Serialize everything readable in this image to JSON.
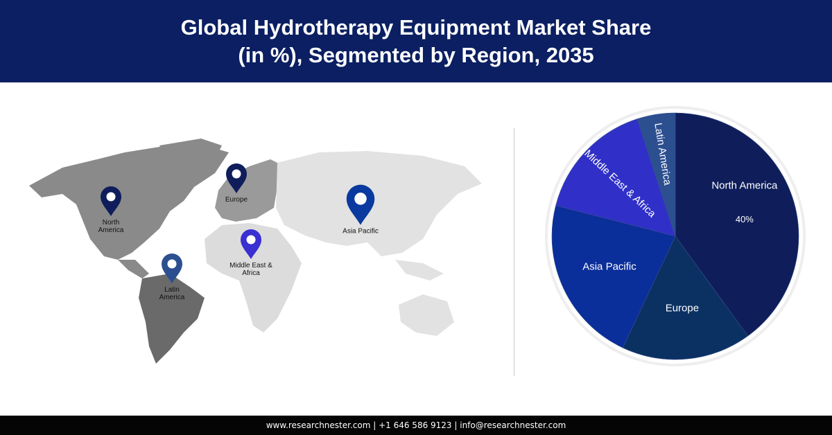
{
  "header": {
    "title_line1": "Global Hydrotherapy Equipment Market Share",
    "title_line2": "(in %), Segmented by Region, 2035"
  },
  "map": {
    "pins": [
      {
        "label_lines": [
          "North",
          "America"
        ],
        "color": "#0f1e5a"
      },
      {
        "label_lines": [
          "Europe"
        ],
        "color": "#0f1e5a"
      },
      {
        "label_lines": [
          "Asia Pacific"
        ],
        "color": "#0a3aa0"
      },
      {
        "label_lines": [
          "Middle East &",
          "Africa"
        ],
        "color": "#3a2fd0"
      },
      {
        "label_lines": [
          "Latin",
          "America"
        ],
        "color": "#2c4f90"
      }
    ]
  },
  "chart_data": {
    "type": "pie",
    "categories": [
      "North America",
      "Europe",
      "Asia Pacific",
      "Middle East & Africa",
      "Latin America"
    ],
    "values": [
      40,
      17,
      22,
      16,
      5
    ],
    "data_labels": [
      "40%",
      "",
      "",
      "",
      ""
    ],
    "colors": [
      "#0f1e5a",
      "#0b3163",
      "#0a2e9a",
      "#3030c8",
      "#2c4f90"
    ],
    "start": "12 o'clock, clockwise"
  },
  "footer": {
    "text": "www.researchnester.com | +1 646 586 9123 | info@researchnester.com"
  }
}
